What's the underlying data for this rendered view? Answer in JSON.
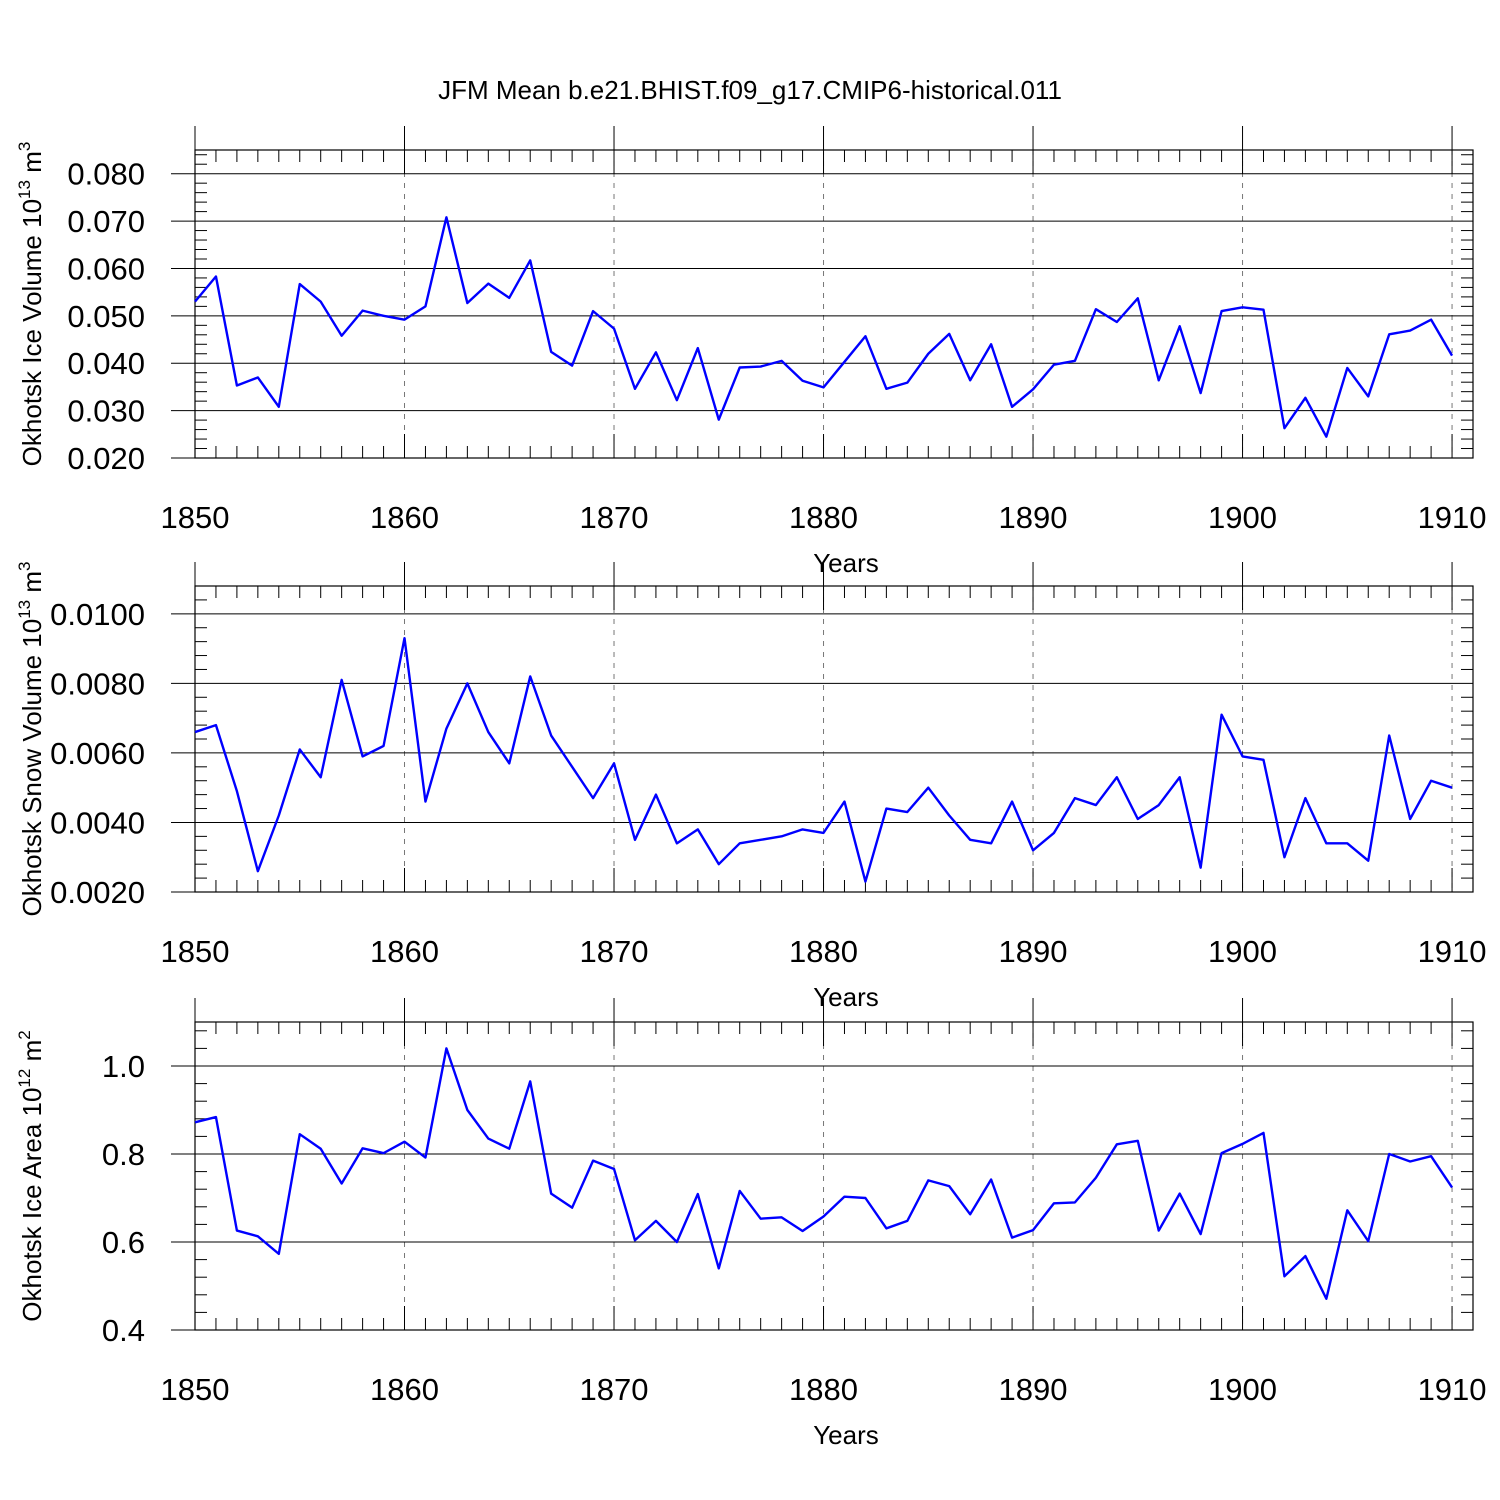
{
  "title": "JFM Mean b.e21.BHIST.f09_g17.CMIP6-historical.011",
  "colors": {
    "series": "#0000ff",
    "grid": "#777777"
  },
  "chart_data": [
    {
      "type": "line",
      "ylabel_main": "Okhotsk Ice Volume 10",
      "ylabel_exp": "13",
      "ylabel_unit": " m",
      "ylabel_unit_exp": "3",
      "xlabel": "Years",
      "xlim": [
        1850,
        1911
      ],
      "ylim": [
        0.02,
        0.085
      ],
      "xticks": [
        1850,
        1860,
        1870,
        1880,
        1890,
        1900,
        1910
      ],
      "xtick_labels": [
        "1850",
        "1860",
        "1870",
        "1880",
        "1890",
        "1900",
        "1910"
      ],
      "yticks": [
        0.02,
        0.03,
        0.04,
        0.05,
        0.06,
        0.07,
        0.08
      ],
      "ytick_labels": [
        "0.020",
        "0.030",
        "0.040",
        "0.050",
        "0.060",
        "0.070",
        "0.080"
      ],
      "x_start": 1850,
      "values": [
        0.053,
        0.0583,
        0.0353,
        0.037,
        0.0308,
        0.0567,
        0.053,
        0.0458,
        0.0511,
        0.05,
        0.0492,
        0.052,
        0.0708,
        0.0527,
        0.0568,
        0.0538,
        0.0617,
        0.0424,
        0.0395,
        0.051,
        0.0473,
        0.0346,
        0.0423,
        0.0322,
        0.0432,
        0.0281,
        0.0391,
        0.0393,
        0.0405,
        0.0363,
        0.0349,
        0.0403,
        0.0457,
        0.0346,
        0.0359,
        0.042,
        0.0462,
        0.0364,
        0.044,
        0.0308,
        0.0345,
        0.0397,
        0.0405,
        0.0514,
        0.0487,
        0.0537,
        0.0364,
        0.0478,
        0.0337,
        0.051,
        0.0518,
        0.0513,
        0.0263,
        0.0327,
        0.0245,
        0.039,
        0.033,
        0.0461,
        0.0469,
        0.0492,
        0.0416
      ]
    },
    {
      "type": "line",
      "ylabel_main": "Okhotsk Snow Volume 10",
      "ylabel_exp": "13",
      "ylabel_unit": " m",
      "ylabel_unit_exp": "3",
      "xlabel": "Years",
      "xlim": [
        1850,
        1911
      ],
      "ylim": [
        0.002,
        0.0108
      ],
      "xticks": [
        1850,
        1860,
        1870,
        1880,
        1890,
        1900,
        1910
      ],
      "xtick_labels": [
        "1850",
        "1860",
        "1870",
        "1880",
        "1890",
        "1900",
        "1910"
      ],
      "yticks": [
        0.002,
        0.004,
        0.006,
        0.008,
        0.01
      ],
      "ytick_labels": [
        "0.0020",
        "0.0040",
        "0.0060",
        "0.0080",
        "0.0100"
      ],
      "x_start": 1850,
      "values": [
        0.0066,
        0.0068,
        0.0049,
        0.0026,
        0.0042,
        0.0061,
        0.0053,
        0.0081,
        0.0059,
        0.0062,
        0.0093,
        0.0046,
        0.0067,
        0.008,
        0.0066,
        0.0057,
        0.0082,
        0.0065,
        0.0056,
        0.0047,
        0.0057,
        0.0035,
        0.0048,
        0.0034,
        0.0038,
        0.0028,
        0.0034,
        0.0035,
        0.0036,
        0.0038,
        0.0037,
        0.0046,
        0.0023,
        0.0044,
        0.0043,
        0.005,
        0.0042,
        0.0035,
        0.0034,
        0.0046,
        0.0032,
        0.0037,
        0.0047,
        0.0045,
        0.0053,
        0.0041,
        0.0045,
        0.0053,
        0.0027,
        0.0071,
        0.0059,
        0.0058,
        0.003,
        0.0047,
        0.0034,
        0.0034,
        0.0029,
        0.0065,
        0.0041,
        0.0052,
        0.005
      ]
    },
    {
      "type": "line",
      "ylabel_main": "Okhotsk Ice Area 10",
      "ylabel_exp": "12",
      "ylabel_unit": " m",
      "ylabel_unit_exp": "2",
      "xlabel": "Years",
      "xlim": [
        1850,
        1911
      ],
      "ylim": [
        0.4,
        1.1
      ],
      "xticks": [
        1850,
        1860,
        1870,
        1880,
        1890,
        1900,
        1910
      ],
      "xtick_labels": [
        "1850",
        "1860",
        "1870",
        "1880",
        "1890",
        "1900",
        "1910"
      ],
      "yticks": [
        0.4,
        0.6,
        0.8,
        1.0
      ],
      "ytick_labels": [
        "0.4",
        "0.6",
        "0.8",
        "1.0"
      ],
      "x_start": 1850,
      "values": [
        0.872,
        0.884,
        0.626,
        0.613,
        0.573,
        0.845,
        0.812,
        0.733,
        0.813,
        0.802,
        0.828,
        0.792,
        1.04,
        0.9,
        0.835,
        0.812,
        0.965,
        0.71,
        0.678,
        0.785,
        0.766,
        0.604,
        0.648,
        0.6,
        0.709,
        0.54,
        0.716,
        0.653,
        0.656,
        0.625,
        0.658,
        0.703,
        0.7,
        0.631,
        0.648,
        0.74,
        0.727,
        0.663,
        0.742,
        0.61,
        0.627,
        0.688,
        0.69,
        0.746,
        0.822,
        0.83,
        0.626,
        0.71,
        0.618,
        0.802,
        0.823,
        0.848,
        0.522,
        0.568,
        0.471,
        0.672,
        0.602,
        0.8,
        0.783,
        0.795,
        0.724
      ]
    }
  ]
}
